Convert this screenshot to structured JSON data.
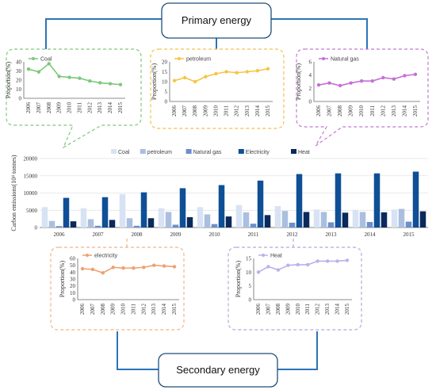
{
  "top_box": {
    "label": "Primary energy"
  },
  "bottom_box": {
    "label": "Secondary energy"
  },
  "years": [
    "2006",
    "2007",
    "2008",
    "2009",
    "2010",
    "2011",
    "2012",
    "2013",
    "2014",
    "2015"
  ],
  "colors": {
    "coal_line": "#7ec77a",
    "petroleum_line": "#f5c542",
    "natural_gas_line": "#c66fd6",
    "electricity_line": "#f0a070",
    "heat_line": "#b9b3e8",
    "bar_coal": "#d7e3f4",
    "bar_petroleum": "#aabfe0",
    "bar_natural_gas": "#6b8fcc",
    "bar_electricity": "#0f4f96",
    "bar_heat": "#0a2a5c"
  },
  "chart_data": [
    {
      "id": "coal",
      "type": "line",
      "series": [
        {
          "name": "Coal",
          "values": [
            32,
            29,
            38,
            24,
            23,
            22,
            19,
            17,
            16,
            15
          ]
        }
      ],
      "ylabel": "Proportion(%)",
      "ylim": [
        0,
        40
      ],
      "yticks": [
        "0",
        "10",
        "20",
        "30",
        "40"
      ]
    },
    {
      "id": "petroleum",
      "type": "line",
      "series": [
        {
          "name": "petroleum",
          "values": [
            10.5,
            12,
            10,
            12.5,
            14,
            15,
            14.5,
            15,
            15.5,
            16.5
          ]
        }
      ],
      "ylabel": "Proportion(%)",
      "ylim": [
        0,
        20
      ],
      "yticks": [
        "0",
        "5",
        "10",
        "15",
        "20"
      ]
    },
    {
      "id": "natural_gas",
      "type": "line",
      "series": [
        {
          "name": "Natural gas",
          "values": [
            2.5,
            2.8,
            2.4,
            2.8,
            3.1,
            3.1,
            3.6,
            3.4,
            3.9,
            4.1
          ]
        }
      ],
      "ylabel": "Proportion(%)",
      "ylim": [
        0,
        6
      ],
      "yticks": [
        "0",
        "2",
        "4",
        "6"
      ]
    },
    {
      "id": "emissions",
      "type": "bar",
      "categories": [
        "2006",
        "2007",
        "2008",
        "2009",
        "2010",
        "2011",
        "2012",
        "2013",
        "2014",
        "2015"
      ],
      "series": [
        {
          "name": "Coal",
          "values": [
            5900,
            5600,
            9700,
            5600,
            5900,
            6500,
            6200,
            5200,
            5100,
            5200
          ]
        },
        {
          "name": "petroleum",
          "values": [
            1900,
            2400,
            2700,
            4500,
            3800,
            4400,
            4800,
            4500,
            4500,
            5400
          ]
        },
        {
          "name": "Natural gas",
          "values": [
            400,
            500,
            500,
            800,
            1000,
            1100,
            1400,
            1500,
            1600,
            1700
          ]
        },
        {
          "name": "Electricity",
          "values": [
            8600,
            8800,
            10200,
            11400,
            12300,
            13600,
            15500,
            15700,
            15700,
            16200
          ]
        },
        {
          "name": "Heat",
          "values": [
            1800,
            2200,
            2700,
            3000,
            3200,
            3600,
            4500,
            4300,
            4400,
            4700
          ]
        }
      ],
      "ylabel": "Carbon emissions(10⁴ tonnes)",
      "ylim": [
        0,
        20000
      ],
      "yticks": [
        "0",
        "5000",
        "10000",
        "15000",
        "20000"
      ],
      "legend": "top"
    },
    {
      "id": "electricity",
      "type": "line",
      "series": [
        {
          "name": "electricity",
          "values": [
            45,
            44,
            39,
            47,
            46,
            46,
            47,
            50,
            49,
            48
          ]
        }
      ],
      "ylabel": "Proportion(%)",
      "ylim": [
        0,
        60
      ],
      "yticks": [
        "0",
        "10",
        "20",
        "30",
        "40",
        "50",
        "60"
      ]
    },
    {
      "id": "heat",
      "type": "line",
      "series": [
        {
          "name": "Heat",
          "values": [
            10,
            12,
            10.8,
            12.5,
            12.7,
            12.7,
            14,
            14,
            14,
            14.3
          ]
        }
      ],
      "ylabel": "Proportion(%)",
      "ylim": [
        0,
        15
      ],
      "yticks": [
        "0",
        "5",
        "10",
        "15"
      ]
    }
  ]
}
